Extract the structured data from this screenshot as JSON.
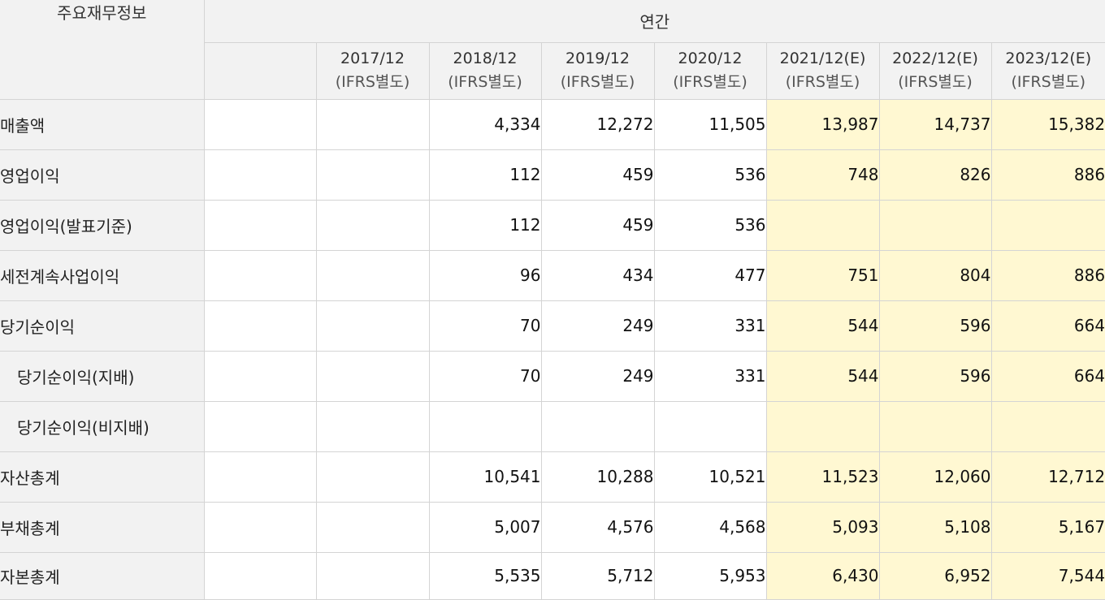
{
  "header": {
    "title": "주요재무정보",
    "group_label": "연간",
    "columns": [
      {
        "period": "",
        "basis": ""
      },
      {
        "period": "2017/12",
        "basis": "(IFRS별도)"
      },
      {
        "period": "2018/12",
        "basis": "(IFRS별도)"
      },
      {
        "period": "2019/12",
        "basis": "(IFRS별도)"
      },
      {
        "period": "2020/12",
        "basis": "(IFRS별도)"
      },
      {
        "period": "2021/12(E)",
        "basis": "(IFRS별도)"
      },
      {
        "period": "2022/12(E)",
        "basis": "(IFRS별도)"
      },
      {
        "period": "2023/12(E)",
        "basis": "(IFRS별도)"
      }
    ]
  },
  "estimate_highlight_color": "#fff8d2",
  "rows": [
    {
      "label": "매출액",
      "values": [
        "",
        "",
        "4,334",
        "12,272",
        "11,505",
        "13,987",
        "14,737",
        "15,382"
      ]
    },
    {
      "label": "영업이익",
      "values": [
        "",
        "",
        "112",
        "459",
        "536",
        "748",
        "826",
        "886"
      ]
    },
    {
      "label": "영업이익(발표기준)",
      "values": [
        "",
        "",
        "112",
        "459",
        "536",
        "",
        "",
        ""
      ]
    },
    {
      "label": "세전계속사업이익",
      "values": [
        "",
        "",
        "96",
        "434",
        "477",
        "751",
        "804",
        "886"
      ]
    },
    {
      "label": "당기순이익",
      "values": [
        "",
        "",
        "70",
        "249",
        "331",
        "544",
        "596",
        "664"
      ]
    },
    {
      "label": "당기순이익(지배)",
      "values": [
        "",
        "",
        "70",
        "249",
        "331",
        "544",
        "596",
        "664"
      ]
    },
    {
      "label": "당기순이익(비지배)",
      "values": [
        "",
        "",
        "",
        "",
        "",
        "",
        "",
        ""
      ]
    },
    {
      "label": "자산총계",
      "values": [
        "",
        "",
        "10,541",
        "10,288",
        "10,521",
        "11,523",
        "12,060",
        "12,712"
      ]
    },
    {
      "label": "부채총계",
      "values": [
        "",
        "",
        "5,007",
        "4,576",
        "4,568",
        "5,093",
        "5,108",
        "5,167"
      ]
    },
    {
      "label": "자본총계",
      "values": [
        "",
        "",
        "5,535",
        "5,712",
        "5,953",
        "6,430",
        "6,952",
        "7,544"
      ]
    }
  ]
}
